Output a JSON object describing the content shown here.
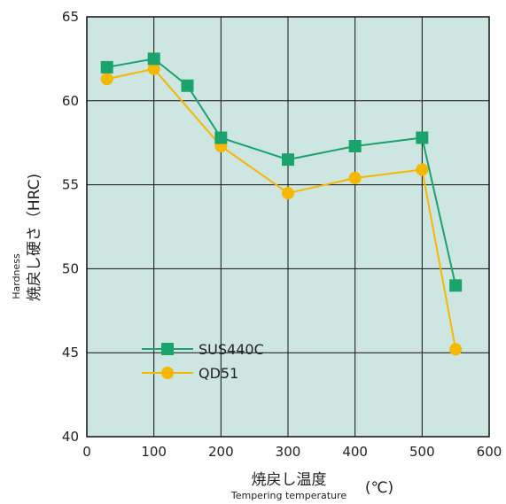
{
  "chart_data": {
    "type": "line",
    "xlabel": "焼戻し温度",
    "xlabel_en": "Tempering temperature",
    "xunit": "(℃)",
    "ylabel": "焼戻し硬さ（HRC)",
    "ylabel_en": "Hardness",
    "xlim": [
      0,
      600
    ],
    "ylim": [
      40,
      65
    ],
    "xticks": [
      0,
      100,
      200,
      300,
      400,
      500,
      600
    ],
    "yticks": [
      40,
      45,
      50,
      55,
      60,
      65
    ],
    "grid": true,
    "legend_position": "lower-left",
    "plot_background": "#cde6e2",
    "series": [
      {
        "name": "SUS440C",
        "color": "#1aa36b",
        "marker": "square",
        "points": [
          [
            30,
            62.0
          ],
          [
            100,
            62.5
          ],
          [
            150,
            60.9
          ],
          [
            200,
            57.8
          ],
          [
            300,
            56.5
          ],
          [
            400,
            57.3
          ],
          [
            500,
            57.8
          ],
          [
            550,
            49.0
          ]
        ]
      },
      {
        "name": "QD51",
        "color": "#f5b800",
        "marker": "circle",
        "points": [
          [
            30,
            61.3
          ],
          [
            100,
            61.9
          ],
          [
            200,
            57.3
          ],
          [
            300,
            54.5
          ],
          [
            400,
            55.4
          ],
          [
            500,
            55.9
          ],
          [
            550,
            45.2
          ]
        ]
      }
    ]
  }
}
